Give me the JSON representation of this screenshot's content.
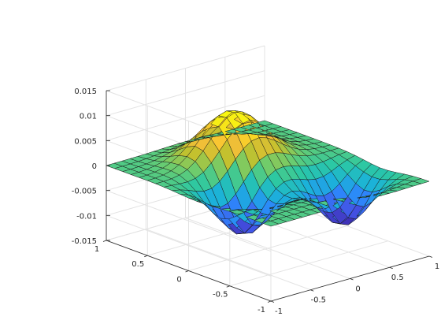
{
  "chart_data": {
    "type": "surface",
    "colormap": "parula",
    "colormap_stops": [
      "#3e26a8",
      "#4354e7",
      "#2d86fb",
      "#1bb2d9",
      "#2bc8a4",
      "#6fcc6c",
      "#c3c12e",
      "#f9be39",
      "#f7e519",
      "#f9fb0e"
    ],
    "edge_color": "#1a1a1a",
    "grid": true,
    "x": {
      "range": [
        -1,
        1
      ],
      "tick_values": [
        -1,
        -0.5,
        0,
        0.5,
        1
      ],
      "tick_labels": [
        "-1",
        "-0.5",
        "0",
        "0.5",
        "1"
      ],
      "samples": 21
    },
    "y": {
      "range": [
        -1,
        1
      ],
      "tick_values": [
        -1,
        -0.5,
        0,
        0.5,
        1
      ],
      "tick_labels": [
        "-1",
        "-0.5",
        "0",
        "0.5",
        "1"
      ],
      "samples": 21
    },
    "z": {
      "range": [
        -0.015,
        0.015
      ],
      "tick_values": [
        -0.015,
        -0.01,
        -0.005,
        0,
        0.005,
        0.01,
        0.015
      ],
      "tick_labels": [
        "-0.015",
        "-0.01",
        "-0.005",
        "0",
        "0.005",
        "0.01",
        "0.015"
      ]
    },
    "surface_features": [
      {
        "kind": "peak",
        "x": 0.0,
        "y": 0.45,
        "z": 0.0105
      },
      {
        "kind": "trough",
        "x": 0.55,
        "y": -0.45,
        "z": -0.0115
      },
      {
        "kind": "trough",
        "x": -0.45,
        "y": -0.1,
        "z": -0.0105
      }
    ]
  }
}
